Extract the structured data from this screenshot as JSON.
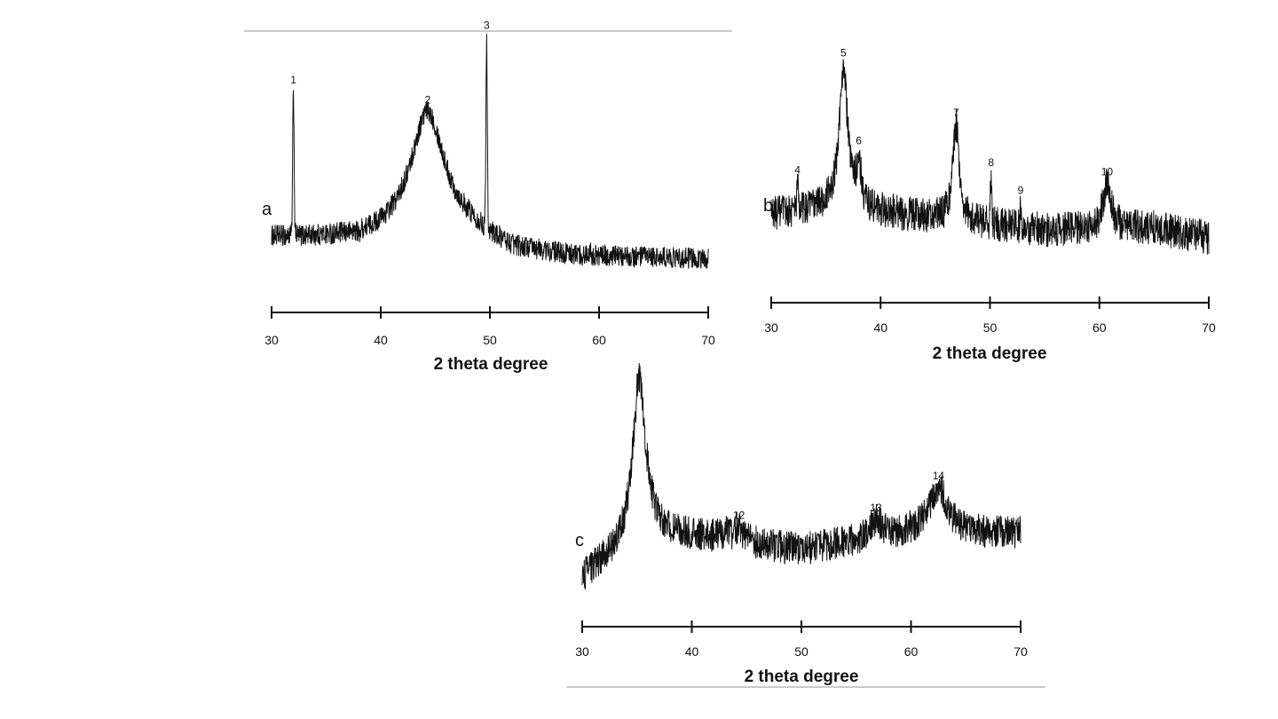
{
  "chart_data": [
    {
      "type": "line",
      "panel_label": "a",
      "xlabel": "2 theta degree",
      "xlim": [
        30,
        70
      ],
      "x_ticks": [
        30,
        40,
        50,
        60,
        70
      ],
      "y_axis_shown": false,
      "baseline": [
        [
          30,
          0.14
        ],
        [
          38,
          0.13
        ],
        [
          42,
          0.15
        ],
        [
          48,
          0.16
        ],
        [
          52,
          0.08
        ],
        [
          58,
          0.05
        ],
        [
          70,
          0.04
        ]
      ],
      "broad_peaks": [
        {
          "center": 44.3,
          "height": 0.72,
          "width": 1.9,
          "label": "2"
        }
      ],
      "peaks": [
        {
          "x": 32.0,
          "height": 0.8,
          "label": "1"
        },
        {
          "x": 49.7,
          "height": 1.0,
          "label": "3"
        },
        {
          "x": 47.8,
          "height": 0.12,
          "label": ""
        },
        {
          "x": 51.0,
          "height": 0.1,
          "label": ""
        },
        {
          "x": 38.0,
          "height": 0.1,
          "label": ""
        },
        {
          "x": 59.2,
          "height": 0.1,
          "label": ""
        }
      ],
      "noise": 0.05
    },
    {
      "type": "line",
      "panel_label": "b",
      "xlabel": "2 theta degree",
      "xlim": [
        30,
        70
      ],
      "x_ticks": [
        30,
        40,
        50,
        60,
        70
      ],
      "y_axis_shown": false,
      "baseline": [
        [
          30,
          0.22
        ],
        [
          35,
          0.26
        ],
        [
          45,
          0.2
        ],
        [
          55,
          0.14
        ],
        [
          65,
          0.15
        ],
        [
          70,
          0.1
        ]
      ],
      "broad_peaks": [
        {
          "center": 36.6,
          "height": 0.98,
          "width": 0.45,
          "label": "5"
        },
        {
          "center": 38.0,
          "height": 0.47,
          "width": 0.25,
          "label": "6"
        },
        {
          "center": 46.9,
          "height": 0.68,
          "width": 0.35,
          "label": "7"
        },
        {
          "center": 60.7,
          "height": 0.38,
          "width": 0.45,
          "label": "10"
        }
      ],
      "peaks": [
        {
          "x": 32.4,
          "height": 0.38,
          "label": "4"
        },
        {
          "x": 50.1,
          "height": 0.42,
          "label": "8"
        },
        {
          "x": 52.8,
          "height": 0.28,
          "label": "9"
        }
      ],
      "noise": 0.09
    },
    {
      "type": "line",
      "panel_label": "c",
      "xlabel": "2 theta degree",
      "xlim": [
        30,
        70
      ],
      "x_ticks": [
        30,
        40,
        50,
        60,
        70
      ],
      "y_axis_shown": false,
      "baseline": [
        [
          30,
          0.04
        ],
        [
          32,
          0.12
        ],
        [
          37,
          0.24
        ],
        [
          40,
          0.24
        ],
        [
          50,
          0.18
        ],
        [
          55,
          0.22
        ],
        [
          60,
          0.26
        ],
        [
          70,
          0.26
        ]
      ],
      "broad_peaks": [
        {
          "center": 35.2,
          "height": 1.0,
          "width": 0.75,
          "label": ""
        },
        {
          "center": 42.9,
          "height": 0.25,
          "width": 0.7,
          "label": ""
        },
        {
          "center": 44.3,
          "height": 0.28,
          "width": 0.5,
          "label": "12"
        },
        {
          "center": 56.8,
          "height": 0.32,
          "width": 0.6,
          "label": "13"
        },
        {
          "center": 62.5,
          "height": 0.48,
          "width": 1.0,
          "label": "14"
        }
      ],
      "peaks": [],
      "noise": 0.08
    }
  ]
}
